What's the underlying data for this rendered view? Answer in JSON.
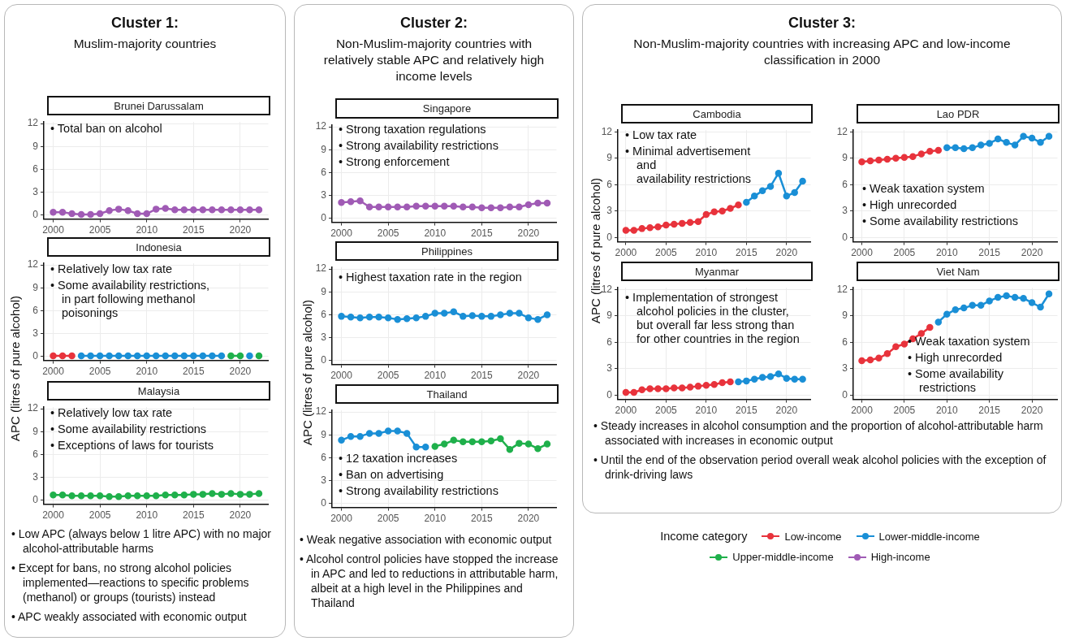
{
  "chart_data": [
    {
      "type": "other",
      "title": "Cluster 1:",
      "subtitle": "Muslim-majority countries",
      "annotations": [
        "• Low APC (always below 1 litre APC) with no major alcohol-attributable harms",
        "• Except for bans, no strong alcohol policies implemented—reactions to specific problems (methanol) or groups (tourists) instead",
        "• APC weakly associated with economic output"
      ]
    },
    {
      "type": "line",
      "title": "Brunei Darussalam",
      "annotations": [
        "• Total ban on alcohol"
      ],
      "x": [
        2000,
        2001,
        2002,
        2003,
        2004,
        2005,
        2006,
        2007,
        2008,
        2009,
        2010,
        2011,
        2012,
        2013,
        2014,
        2015,
        2016,
        2017,
        2018,
        2019,
        2020,
        2021,
        2022
      ],
      "xlim": [
        1999,
        2023
      ],
      "xticks": [
        2000,
        2005,
        2010,
        2015,
        2020
      ],
      "ylim": [
        -0.5,
        12.2
      ],
      "yticks": [
        0,
        3,
        6,
        9,
        12
      ],
      "grid": true,
      "marker": "circle",
      "line_style": "solid",
      "series": [
        {
          "color": "#a05bb5",
          "values": [
            0.4,
            0.4,
            0.2,
            0.1,
            0.1,
            0.2,
            0.6,
            0.8,
            0.6,
            0.2,
            0.2,
            0.8,
            0.9,
            0.7,
            0.7,
            0.7,
            0.7,
            0.7,
            0.7,
            0.7,
            0.7,
            0.7,
            0.7
          ]
        }
      ]
    },
    {
      "type": "line",
      "title": "Indonesia",
      "ylabel": "APC (litres of pure alcohol)",
      "annotations": [
        "• Relatively low tax rate",
        "• Some availability restrictions,\nin part following methanol\npoisonings"
      ],
      "x": [
        2000,
        2001,
        2002,
        2003,
        2004,
        2005,
        2006,
        2007,
        2008,
        2009,
        2010,
        2011,
        2012,
        2013,
        2014,
        2015,
        2016,
        2017,
        2018,
        2019,
        2020,
        2021,
        2022
      ],
      "xlim": [
        1999,
        2023
      ],
      "xticks": [
        2000,
        2005,
        2010,
        2015,
        2020
      ],
      "ylim": [
        -0.5,
        12.2
      ],
      "yticks": [
        0,
        3,
        6,
        9,
        12
      ],
      "grid": true,
      "marker": "circle",
      "line_style": "solid",
      "series": [
        {
          "color": "#e8333c",
          "values": [
            0.1,
            0.1,
            0.1,
            null,
            null,
            null,
            null,
            null,
            null,
            null,
            null,
            null,
            null,
            null,
            null,
            null,
            null,
            null,
            null,
            null,
            null,
            null,
            null
          ]
        },
        {
          "color": "#1a8fd6",
          "values": [
            null,
            null,
            null,
            0.1,
            0.1,
            0.1,
            0.1,
            0.1,
            0.1,
            0.1,
            0.1,
            0.1,
            0.1,
            0.1,
            0.1,
            0.1,
            0.1,
            0.1,
            0.1,
            null,
            null,
            0.1,
            null
          ]
        },
        {
          "color": "#1fb04b",
          "values": [
            null,
            null,
            null,
            null,
            null,
            null,
            null,
            null,
            null,
            null,
            null,
            null,
            null,
            null,
            null,
            null,
            null,
            null,
            null,
            0.1,
            0.1,
            null,
            0.1
          ]
        }
      ]
    },
    {
      "type": "line",
      "title": "Malaysia",
      "annotations": [
        "• Relatively low tax rate",
        "• Some availability restrictions",
        "• Exceptions of laws for tourists"
      ],
      "x": [
        2000,
        2001,
        2002,
        2003,
        2004,
        2005,
        2006,
        2007,
        2008,
        2009,
        2010,
        2011,
        2012,
        2013,
        2014,
        2015,
        2016,
        2017,
        2018,
        2019,
        2020,
        2021,
        2022
      ],
      "xlim": [
        1999,
        2023
      ],
      "xticks": [
        2000,
        2005,
        2010,
        2015,
        2020
      ],
      "ylim": [
        -0.5,
        12.2
      ],
      "yticks": [
        0,
        3,
        6,
        9,
        12
      ],
      "grid": true,
      "marker": "circle",
      "line_style": "solid",
      "series": [
        {
          "color": "#1fb04b",
          "values": [
            0.7,
            0.7,
            0.6,
            0.6,
            0.6,
            0.6,
            0.5,
            0.5,
            0.6,
            0.6,
            0.6,
            0.6,
            0.7,
            0.7,
            0.7,
            0.8,
            0.8,
            0.9,
            0.8,
            0.9,
            0.8,
            0.8,
            0.9
          ]
        }
      ]
    },
    {
      "type": "other",
      "title": "Cluster 2:",
      "subtitle": "Non-Muslim-majority countries with relatively stable APC and relatively high income levels",
      "annotations": [
        "• Weak negative association with economic output",
        "• Alcohol control policies have stopped the increase in APC and led to reductions in attributable harm, albeit at a high level in the Philippines and Thailand"
      ]
    },
    {
      "type": "line",
      "title": "Singapore",
      "annotations": [
        "• Strong taxation regulations",
        "• Strong availability restrictions",
        "• Strong enforcement"
      ],
      "x": [
        2000,
        2001,
        2002,
        2003,
        2004,
        2005,
        2006,
        2007,
        2008,
        2009,
        2010,
        2011,
        2012,
        2013,
        2014,
        2015,
        2016,
        2017,
        2018,
        2019,
        2020,
        2021,
        2022
      ],
      "xlim": [
        1999,
        2023
      ],
      "xticks": [
        2000,
        2005,
        2010,
        2015,
        2020
      ],
      "ylim": [
        -0.5,
        12.2
      ],
      "yticks": [
        0,
        3,
        6,
        9,
        12
      ],
      "grid": true,
      "marker": "circle",
      "line_style": "solid",
      "series": [
        {
          "color": "#a05bb5",
          "values": [
            2.1,
            2.2,
            2.3,
            1.5,
            1.5,
            1.5,
            1.5,
            1.5,
            1.6,
            1.6,
            1.6,
            1.6,
            1.6,
            1.5,
            1.5,
            1.4,
            1.4,
            1.4,
            1.5,
            1.5,
            1.8,
            2.0,
            2.0
          ]
        }
      ]
    },
    {
      "type": "line",
      "title": "Philippines",
      "ylabel": "APC (litres of pure alcohol)",
      "annotations": [
        "• Highest taxation rate in the region"
      ],
      "x": [
        2000,
        2001,
        2002,
        2003,
        2004,
        2005,
        2006,
        2007,
        2008,
        2009,
        2010,
        2011,
        2012,
        2013,
        2014,
        2015,
        2016,
        2017,
        2018,
        2019,
        2020,
        2021,
        2022
      ],
      "xlim": [
        1999,
        2023
      ],
      "xticks": [
        2000,
        2005,
        2010,
        2015,
        2020
      ],
      "ylim": [
        -0.5,
        12.2
      ],
      "yticks": [
        0,
        3,
        6,
        9,
        12
      ],
      "grid": true,
      "marker": "circle",
      "line_style": "solid",
      "series": [
        {
          "color": "#1a8fd6",
          "values": [
            5.8,
            5.7,
            5.6,
            5.7,
            5.7,
            5.6,
            5.4,
            5.5,
            5.6,
            5.8,
            6.2,
            6.2,
            6.4,
            5.8,
            5.9,
            5.8,
            5.8,
            6.0,
            6.2,
            6.2,
            5.6,
            5.4,
            6.0
          ]
        }
      ]
    },
    {
      "type": "line",
      "title": "Thailand",
      "annotations": [
        "• 12 taxation increases",
        "• Ban on advertising",
        "• Strong availability restrictions"
      ],
      "x": [
        2000,
        2001,
        2002,
        2003,
        2004,
        2005,
        2006,
        2007,
        2008,
        2009,
        2010,
        2011,
        2012,
        2013,
        2014,
        2015,
        2016,
        2017,
        2018,
        2019,
        2020,
        2021,
        2022
      ],
      "xlim": [
        1999,
        2023
      ],
      "xticks": [
        2000,
        2005,
        2010,
        2015,
        2020
      ],
      "ylim": [
        -0.5,
        12.2
      ],
      "yticks": [
        0,
        3,
        6,
        9,
        12
      ],
      "grid": true,
      "marker": "circle",
      "line_style": "solid",
      "series": [
        {
          "color": "#1a8fd6",
          "values": [
            8.3,
            8.8,
            8.8,
            9.2,
            9.2,
            9.5,
            9.5,
            9.2,
            7.4,
            7.4,
            null,
            null,
            null,
            null,
            null,
            null,
            null,
            null,
            null,
            null,
            null,
            null,
            null
          ]
        },
        {
          "color": "#1fb04b",
          "values": [
            null,
            null,
            null,
            null,
            null,
            null,
            null,
            null,
            null,
            null,
            7.5,
            7.8,
            8.3,
            8.1,
            8.1,
            8.1,
            8.2,
            8.5,
            7.1,
            7.9,
            7.8,
            7.2,
            7.8
          ]
        }
      ]
    },
    {
      "type": "other",
      "title": "Cluster 3:",
      "subtitle": "Non-Muslim-majority countries with increasing APC and low-income classification in 2000",
      "annotations": [
        "• Steady increases in alcohol consumption and the proportion of alcohol-attributable harm associated with increases in economic output",
        "• Until the end of the observation period overall weak alcohol policies with the exception of drink-driving laws"
      ]
    },
    {
      "type": "line",
      "title": "Cambodia",
      "ylabel": "APC (litres of pure alcohol)",
      "annotations": [
        "• Low tax rate",
        "• Minimal advertisement\nand\navailability restrictions"
      ],
      "x": [
        2000,
        2001,
        2002,
        2003,
        2004,
        2005,
        2006,
        2007,
        2008,
        2009,
        2010,
        2011,
        2012,
        2013,
        2014,
        2015,
        2016,
        2017,
        2018,
        2019,
        2020,
        2021,
        2022
      ],
      "xlim": [
        1999,
        2023
      ],
      "xticks": [
        2000,
        2005,
        2010,
        2015,
        2020
      ],
      "ylim": [
        -0.5,
        12.2
      ],
      "yticks": [
        0,
        3,
        6,
        9,
        12
      ],
      "grid": true,
      "marker": "circle",
      "line_style": "solid",
      "series": [
        {
          "color": "#e8333c",
          "values": [
            0.8,
            0.8,
            1.0,
            1.1,
            1.2,
            1.4,
            1.5,
            1.6,
            1.7,
            1.8,
            2.6,
            2.9,
            3.0,
            3.3,
            3.7,
            null,
            null,
            null,
            null,
            null,
            null,
            null,
            null
          ]
        },
        {
          "color": "#1a8fd6",
          "values": [
            null,
            null,
            null,
            null,
            null,
            null,
            null,
            null,
            null,
            null,
            null,
            null,
            null,
            null,
            null,
            4.0,
            4.7,
            5.3,
            5.8,
            7.3,
            4.7,
            5.1,
            6.4
          ]
        }
      ]
    },
    {
      "type": "line",
      "title": "Lao PDR",
      "annotations": [
        "• Weak taxation system",
        "• High unrecorded",
        "• Some availability restrictions"
      ],
      "x": [
        2000,
        2001,
        2002,
        2003,
        2004,
        2005,
        2006,
        2007,
        2008,
        2009,
        2010,
        2011,
        2012,
        2013,
        2014,
        2015,
        2016,
        2017,
        2018,
        2019,
        2020,
        2021,
        2022
      ],
      "xlim": [
        1999,
        2023
      ],
      "xticks": [
        2000,
        2005,
        2010,
        2015,
        2020
      ],
      "ylim": [
        -0.5,
        12.2
      ],
      "yticks": [
        0,
        3,
        6,
        9,
        12
      ],
      "grid": true,
      "marker": "circle",
      "line_style": "solid",
      "series": [
        {
          "color": "#e8333c",
          "values": [
            8.6,
            8.7,
            8.8,
            8.9,
            9.0,
            9.1,
            9.2,
            9.5,
            9.8,
            9.9,
            null,
            null,
            null,
            null,
            null,
            null,
            null,
            null,
            null,
            null,
            null,
            null,
            null
          ]
        },
        {
          "color": "#1a8fd6",
          "values": [
            null,
            null,
            null,
            null,
            null,
            null,
            null,
            null,
            null,
            null,
            10.2,
            10.2,
            10.1,
            10.2,
            10.5,
            10.7,
            11.2,
            10.8,
            10.5,
            11.5,
            11.3,
            10.8,
            11.5
          ]
        }
      ]
    },
    {
      "type": "line",
      "title": "Myanmar",
      "annotations": [
        "• Implementation of strongest\nalcohol policies in the cluster,\nbut overall far less strong than\nfor other countries in the region"
      ],
      "x": [
        2000,
        2001,
        2002,
        2003,
        2004,
        2005,
        2006,
        2007,
        2008,
        2009,
        2010,
        2011,
        2012,
        2013,
        2014,
        2015,
        2016,
        2017,
        2018,
        2019,
        2020,
        2021,
        2022
      ],
      "xlim": [
        1999,
        2023
      ],
      "xticks": [
        2000,
        2005,
        2010,
        2015,
        2020
      ],
      "ylim": [
        -0.5,
        12.2
      ],
      "yticks": [
        0,
        3,
        6,
        9,
        12
      ],
      "grid": true,
      "marker": "circle",
      "line_style": "solid",
      "series": [
        {
          "color": "#e8333c",
          "values": [
            0.3,
            0.3,
            0.6,
            0.7,
            0.7,
            0.7,
            0.8,
            0.8,
            0.9,
            1.0,
            1.1,
            1.2,
            1.4,
            1.5,
            null,
            null,
            null,
            null,
            null,
            null,
            null,
            null,
            null
          ]
        },
        {
          "color": "#1a8fd6",
          "values": [
            null,
            null,
            null,
            null,
            null,
            null,
            null,
            null,
            null,
            null,
            null,
            null,
            null,
            null,
            1.5,
            1.6,
            1.8,
            2.0,
            2.1,
            2.4,
            1.9,
            1.8,
            1.8
          ]
        }
      ]
    },
    {
      "type": "line",
      "title": "Viet Nam",
      "annotations": [
        "• Weak taxation system",
        "• High unrecorded",
        "• Some availability\nrestrictions"
      ],
      "x": [
        2000,
        2001,
        2002,
        2003,
        2004,
        2005,
        2006,
        2007,
        2008,
        2009,
        2010,
        2011,
        2012,
        2013,
        2014,
        2015,
        2016,
        2017,
        2018,
        2019,
        2020,
        2021,
        2022
      ],
      "xlim": [
        1999,
        2023
      ],
      "xticks": [
        2000,
        2005,
        2010,
        2015,
        2020
      ],
      "ylim": [
        -0.5,
        12.2
      ],
      "yticks": [
        0,
        3,
        6,
        9,
        12
      ],
      "grid": true,
      "marker": "circle",
      "line_style": "solid",
      "legend": "bottom",
      "legend_title": "Income category",
      "series": [
        {
          "name": "Low-income",
          "color": "#e8333c",
          "values": [
            3.9,
            4.0,
            4.2,
            4.7,
            5.5,
            5.8,
            6.4,
            7.0,
            7.7,
            null,
            null,
            null,
            null,
            null,
            null,
            null,
            null,
            null,
            null,
            null,
            null,
            null,
            null
          ]
        },
        {
          "name": "Lower-middle-income",
          "color": "#1a8fd6",
          "values": [
            null,
            null,
            null,
            null,
            null,
            null,
            null,
            null,
            null,
            8.3,
            9.2,
            9.7,
            9.9,
            10.2,
            10.2,
            10.7,
            11.1,
            11.3,
            11.1,
            11.0,
            10.5,
            10.0,
            11.5
          ]
        },
        {
          "name": "Upper-middle-income",
          "color": "#1fb04b",
          "values": [
            null,
            null,
            null,
            null,
            null,
            null,
            null,
            null,
            null,
            null,
            null,
            null,
            null,
            null,
            null,
            null,
            null,
            null,
            null,
            null,
            null,
            null,
            null
          ]
        },
        {
          "name": "High-income",
          "color": "#a05bb5",
          "values": [
            null,
            null,
            null,
            null,
            null,
            null,
            null,
            null,
            null,
            null,
            null,
            null,
            null,
            null,
            null,
            null,
            null,
            null,
            null,
            null,
            null,
            null,
            null
          ]
        }
      ]
    }
  ]
}
